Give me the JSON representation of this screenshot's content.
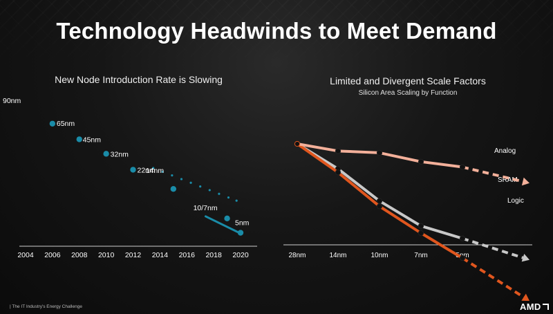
{
  "slide": {
    "title": "Technology Headwinds to Meet Demand",
    "footer": "|  The IT Industry's Energy Challenge",
    "logo": "AMD"
  },
  "colors": {
    "teal": "#1a8ca8",
    "analog": "#f3b09a",
    "sram": "#c8c8c8",
    "logic": "#e0561e",
    "axis": "#cfcfcf"
  },
  "chart_data": [
    {
      "type": "scatter",
      "title": "New Node Introduction Rate is Slowing",
      "x_ticks": [
        "2004",
        "2006",
        "2008",
        "2010",
        "2012",
        "2014",
        "2016",
        "2018",
        "2020"
      ],
      "xlim": [
        2003,
        2021
      ],
      "points": [
        {
          "label": "90nm",
          "x": 2004,
          "y": 90
        },
        {
          "label": "65nm",
          "x": 2006,
          "y": 65
        },
        {
          "label": "45nm",
          "x": 2008,
          "y": 45
        },
        {
          "label": "32nm",
          "x": 2010,
          "y": 32
        },
        {
          "label": "22nm",
          "x": 2012,
          "y": 22
        },
        {
          "label": "14nm",
          "x": 2015,
          "y": 14
        },
        {
          "label": "10/7nm",
          "x": 2019,
          "y": 7
        },
        {
          "label": "5nm",
          "x": 2020,
          "y": 5
        }
      ],
      "trend_dots_x": [
        2013.5,
        2014.2,
        2014.9,
        2015.6,
        2016.3,
        2017,
        2017.7,
        2018.4,
        2019.1,
        2019.7
      ],
      "recent_segment_x": [
        2017.4,
        2020
      ]
    },
    {
      "type": "line",
      "title": "Limited and Divergent Scale Factors",
      "subtitle": "Silicon Area Scaling by Function",
      "categories": [
        "28nm",
        "14nm",
        "10nm",
        "7nm",
        "5nm"
      ],
      "ylim": [
        0,
        1
      ],
      "series": [
        {
          "name": "Analog",
          "values": [
            1.0,
            0.96,
            0.95,
            0.9,
            0.87
          ],
          "projection": 0.78
        },
        {
          "name": "SRAM",
          "values": [
            1.0,
            0.86,
            0.68,
            0.54,
            0.47
          ],
          "projection": 0.35
        },
        {
          "name": "Logic",
          "values": [
            1.0,
            0.84,
            0.65,
            0.5,
            0.36
          ],
          "projection": 0.12
        }
      ]
    }
  ]
}
